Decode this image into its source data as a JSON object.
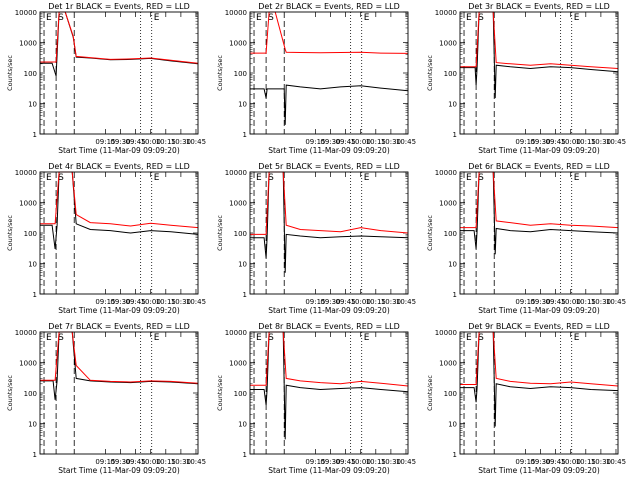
{
  "figure": {
    "chart_data": {
      "type": "line",
      "yscale": "log",
      "ylim": [
        1,
        10000
      ],
      "xlim": [
        "08:10",
        "10:47"
      ],
      "x_ticks": [
        "09:15",
        "09:30",
        "09:45",
        "10:00",
        "10:15",
        "10:30",
        "10:45"
      ],
      "y_ticks": [
        "1",
        "10",
        "100",
        "1000",
        "10000"
      ],
      "ylabel": "Counts/sec",
      "xlabel": "Start Time (11-Mar-09 09:09:20)",
      "colors": {
        "events": "#000000",
        "lld": "#ff0000"
      },
      "markers": [
        {
          "label": "E",
          "x": "08:14",
          "style": "dash"
        },
        {
          "label": "S",
          "x": "08:26",
          "style": "dash"
        },
        {
          "label": "",
          "x": "08:44",
          "style": "dash"
        },
        {
          "label": "",
          "x": "09:50",
          "style": "dot"
        },
        {
          "label": "E",
          "x": "10:01",
          "style": "dot"
        }
      ],
      "panels": [
        {
          "title": "Det 1r BLACK = Events, RED = LLD",
          "series": [
            {
              "x": [
                "08:10",
                "08:22",
                "08:26",
                "08:29",
                "08:35",
                "08:43",
                "08:46",
                "09:00",
                "09:20",
                "09:40",
                "10:00",
                "10:20",
                "10:47"
              ],
              "values": [
                210,
                210,
                80,
                10000,
                10000,
                1500,
                330,
                310,
                270,
                280,
                300,
                250,
                200
              ]
            },
            {
              "x": [
                "08:10",
                "08:22",
                "08:26",
                "08:29",
                "08:35",
                "08:43",
                "08:46",
                "09:00",
                "09:20",
                "09:40",
                "10:00",
                "10:20",
                "10:47"
              ],
              "values": [
                230,
                230,
                230,
                10000,
                10000,
                1600,
                350,
                320,
                280,
                290,
                310,
                260,
                210
              ]
            }
          ]
        },
        {
          "title": "Det 2r BLACK = Events, RED = LLD",
          "series": [
            {
              "x": [
                "08:10",
                "08:24",
                "08:26",
                "08:27",
                "08:44",
                "08:45",
                "08:46",
                "09:00",
                "09:20",
                "09:40",
                "10:00",
                "10:20",
                "10:47"
              ],
              "values": [
                30,
                30,
                15,
                30,
                30,
                2,
                40,
                35,
                30,
                35,
                38,
                32,
                26
              ]
            },
            {
              "x": [
                "08:10",
                "08:24",
                "08:26",
                "08:29",
                "08:35",
                "08:45",
                "08:46",
                "09:00",
                "09:20",
                "09:40",
                "10:00",
                "10:20",
                "10:47"
              ],
              "values": [
                450,
                450,
                450,
                10000,
                10000,
                600,
                480,
                470,
                460,
                470,
                480,
                450,
                440
              ]
            }
          ]
        },
        {
          "title": "Det 3r BLACK = Events, RED = LLD",
          "series": [
            {
              "x": [
                "08:10",
                "08:25",
                "08:26",
                "08:27",
                "08:29",
                "08:43",
                "08:45",
                "08:46",
                "09:00",
                "09:20",
                "09:40",
                "10:00",
                "10:20",
                "10:47"
              ],
              "values": [
                150,
                150,
                40,
                150,
                10000,
                10000,
                15,
                180,
                160,
                140,
                160,
                150,
                130,
                110
              ]
            },
            {
              "x": [
                "08:10",
                "08:25",
                "08:26",
                "08:29",
                "08:43",
                "08:46",
                "09:00",
                "09:20",
                "09:40",
                "10:00",
                "10:20",
                "10:47"
              ],
              "values": [
                160,
                160,
                160,
                10000,
                10000,
                220,
                200,
                180,
                200,
                180,
                160,
                140
              ]
            }
          ]
        },
        {
          "title": "Det 4r BLACK = Events, RED = LLD",
          "series": [
            {
              "x": [
                "08:10",
                "08:22",
                "08:25",
                "08:27",
                "08:29",
                "08:42",
                "08:46",
                "09:00",
                "09:20",
                "09:40",
                "10:00",
                "10:20",
                "10:47"
              ],
              "values": [
                180,
                180,
                30,
                180,
                10000,
                10000,
                200,
                130,
                120,
                100,
                120,
                110,
                90
              ]
            },
            {
              "x": [
                "08:10",
                "08:22",
                "08:25",
                "08:29",
                "08:42",
                "08:46",
                "09:00",
                "09:20",
                "09:40",
                "10:00",
                "10:20",
                "10:47"
              ],
              "values": [
                200,
                200,
                200,
                10000,
                10000,
                400,
                220,
                200,
                170,
                210,
                180,
                150
              ]
            }
          ]
        },
        {
          "title": "Det 5r BLACK = Events, RED = LLD",
          "series": [
            {
              "x": [
                "08:10",
                "08:24",
                "08:26",
                "08:27",
                "08:29",
                "08:43",
                "08:45",
                "08:46",
                "09:00",
                "09:20",
                "09:40",
                "10:00",
                "10:20",
                "10:47"
              ],
              "values": [
                70,
                70,
                15,
                70,
                10000,
                10000,
                5,
                90,
                80,
                70,
                75,
                80,
                75,
                70
              ]
            },
            {
              "x": [
                "08:10",
                "08:24",
                "08:26",
                "08:29",
                "08:43",
                "08:46",
                "09:00",
                "09:20",
                "09:40",
                "10:00",
                "10:20",
                "10:47"
              ],
              "values": [
                90,
                90,
                90,
                10000,
                10000,
                180,
                130,
                120,
                110,
                150,
                120,
                100
              ]
            }
          ]
        },
        {
          "title": "Det 6r BLACK = Events, RED = LLD",
          "series": [
            {
              "x": [
                "08:10",
                "08:24",
                "08:26",
                "08:27",
                "08:29",
                "08:43",
                "08:45",
                "08:46",
                "09:00",
                "09:20",
                "09:40",
                "10:00",
                "10:20",
                "10:47"
              ],
              "values": [
                120,
                120,
                30,
                120,
                10000,
                10000,
                20,
                140,
                120,
                110,
                130,
                120,
                110,
                100
              ]
            },
            {
              "x": [
                "08:10",
                "08:24",
                "08:26",
                "08:29",
                "08:43",
                "08:46",
                "09:00",
                "09:20",
                "09:40",
                "10:00",
                "10:20",
                "10:47"
              ],
              "values": [
                150,
                150,
                150,
                10000,
                10000,
                250,
                220,
                180,
                200,
                180,
                170,
                150
              ]
            }
          ]
        },
        {
          "title": "Det 7r BLACK = Events, RED = LLD",
          "series": [
            {
              "x": [
                "08:10",
                "08:23",
                "08:25",
                "08:27",
                "08:29",
                "08:42",
                "08:46",
                "09:00",
                "09:20",
                "09:40",
                "10:00",
                "10:20",
                "10:47"
              ],
              "values": [
                250,
                250,
                60,
                250,
                10000,
                10000,
                300,
                250,
                230,
                220,
                240,
                230,
                200
              ]
            },
            {
              "x": [
                "08:10",
                "08:23",
                "08:25",
                "08:29",
                "08:42",
                "08:46",
                "09:00",
                "09:20",
                "09:40",
                "10:00",
                "10:20",
                "10:47"
              ],
              "values": [
                260,
                260,
                260,
                10000,
                10000,
                800,
                260,
                240,
                230,
                250,
                240,
                210
              ]
            }
          ]
        },
        {
          "title": "Det 8r BLACK = Events, RED = LLD",
          "series": [
            {
              "x": [
                "08:10",
                "08:24",
                "08:26",
                "08:27",
                "08:29",
                "08:43",
                "08:45",
                "08:46",
                "09:00",
                "09:20",
                "09:40",
                "10:00",
                "10:20",
                "10:47"
              ],
              "values": [
                130,
                130,
                40,
                130,
                10000,
                10000,
                3,
                180,
                150,
                130,
                140,
                150,
                130,
                110
              ]
            },
            {
              "x": [
                "08:10",
                "08:24",
                "08:26",
                "08:29",
                "08:43",
                "08:46",
                "09:00",
                "09:20",
                "09:40",
                "10:00",
                "10:20",
                "10:47"
              ],
              "values": [
                180,
                180,
                180,
                10000,
                10000,
                300,
                250,
                220,
                200,
                240,
                210,
                170
              ]
            }
          ]
        },
        {
          "title": "Det 9r BLACK = Events, RED = LLD",
          "series": [
            {
              "x": [
                "08:10",
                "08:24",
                "08:26",
                "08:27",
                "08:29",
                "08:43",
                "08:45",
                "08:46",
                "09:00",
                "09:20",
                "09:40",
                "10:00",
                "10:20",
                "10:47"
              ],
              "values": [
                150,
                150,
                50,
                150,
                10000,
                10000,
                8,
                200,
                160,
                140,
                160,
                150,
                130,
                120
              ]
            },
            {
              "x": [
                "08:10",
                "08:24",
                "08:26",
                "08:29",
                "08:43",
                "08:46",
                "09:00",
                "09:20",
                "09:40",
                "10:00",
                "10:20",
                "10:47"
              ],
              "values": [
                190,
                190,
                190,
                10000,
                10000,
                300,
                240,
                210,
                200,
                230,
                200,
                170
              ]
            }
          ]
        }
      ]
    }
  }
}
